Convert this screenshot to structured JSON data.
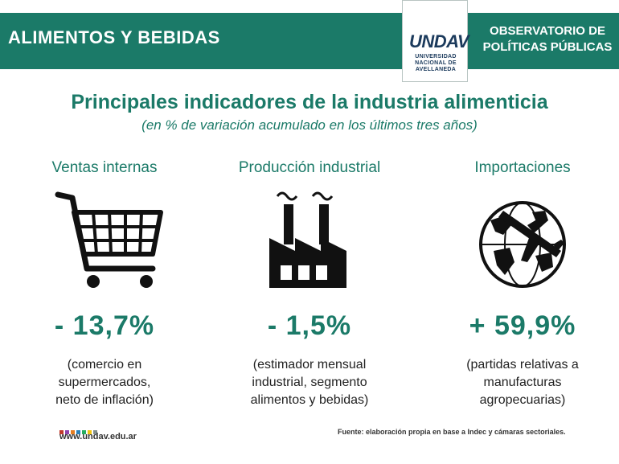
{
  "header": {
    "section_title": "ALIMENTOS Y BEBIDAS",
    "logo_mark": "UNDAV",
    "logo_text_1": "UNIVERSIDAD",
    "logo_text_2": "NACIONAL DE",
    "logo_text_3": "AVELLANEDA",
    "org_line_1": "OBSERVATORIO DE",
    "org_line_2": "POLÍTICAS PÚBLICAS"
  },
  "main": {
    "title": "Principales indicadores de la industria alimenticia",
    "subtitle": "(en % de variación acumulado en los últimos tres años)"
  },
  "indicators": [
    {
      "label": "Ventas internas",
      "icon": "shopping-cart-icon",
      "value": "- 13,7%",
      "note_1": "(comercio en",
      "note_2": "supermercados,",
      "note_3": "neto de inflación)"
    },
    {
      "label": "Producción industrial",
      "icon": "factory-icon",
      "value": "- 1,5%",
      "note_1": "(estimador mensual",
      "note_2": "industrial, segmento",
      "note_3": "alimentos y bebidas)"
    },
    {
      "label": "Importaciones",
      "icon": "globe-airplane-icon",
      "value": "+ 59,9%",
      "note_1": "(partidas relativas a",
      "note_2": "manufacturas",
      "note_3": "agropecuarias)"
    }
  ],
  "footer": {
    "website": "www.undav.edu.ar",
    "source": "Fuente: elaboración propia en base a Indec y cámaras sectoriales."
  },
  "colors": {
    "accent": "#1b7a68",
    "logo": "#1b3a5c",
    "dots": [
      "#c0392b",
      "#8e44ad",
      "#e67e22",
      "#2980b9",
      "#27ae60",
      "#f1c40f",
      "#7f8c8d"
    ]
  }
}
